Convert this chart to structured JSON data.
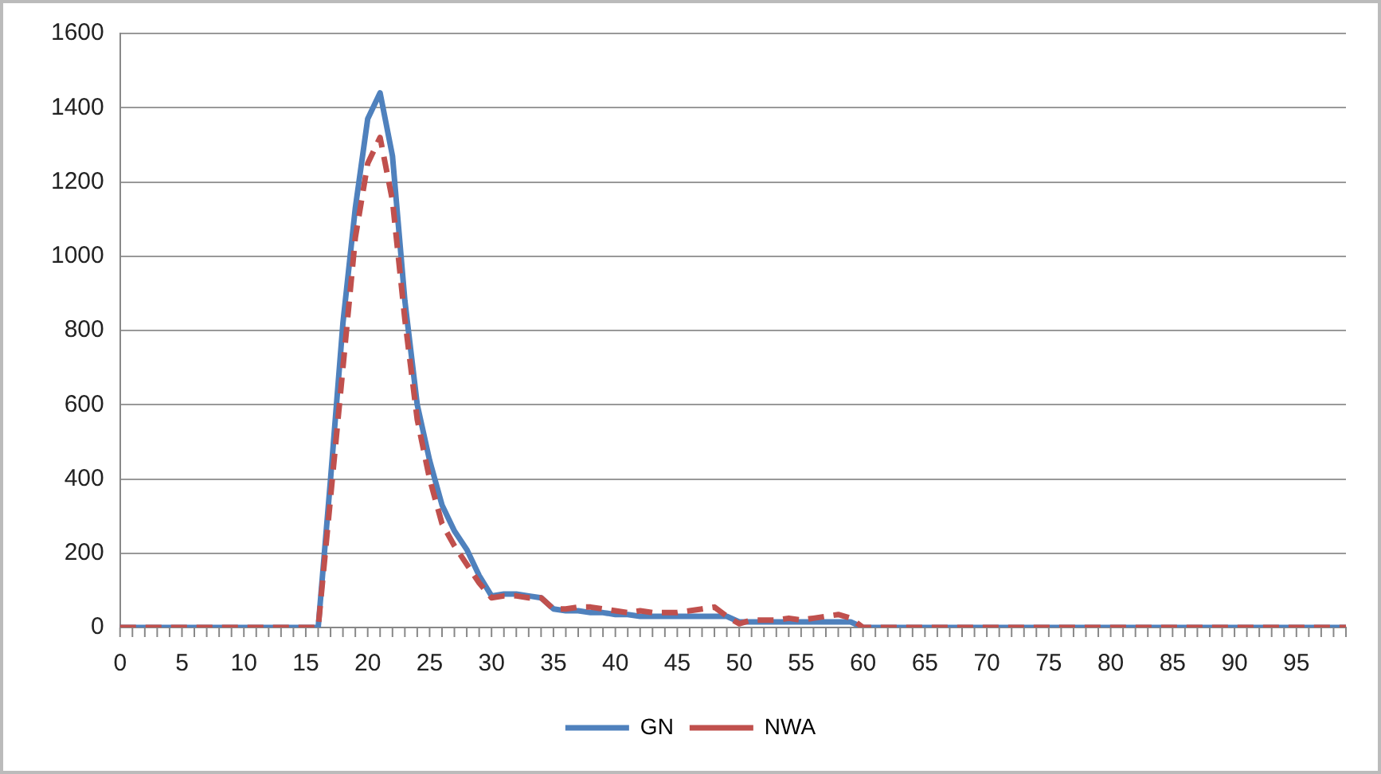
{
  "chart_data": {
    "type": "line",
    "categories": [
      "0",
      null,
      null,
      null,
      null,
      "5",
      null,
      null,
      null,
      null,
      "10",
      null,
      null,
      null,
      null,
      "15",
      null,
      null,
      null,
      null,
      "20",
      null,
      null,
      null,
      null,
      "25",
      null,
      null,
      null,
      null,
      "30",
      null,
      null,
      null,
      null,
      "35",
      null,
      null,
      null,
      null,
      "40",
      null,
      null,
      null,
      null,
      "45",
      null,
      null,
      null,
      null,
      "50",
      null,
      null,
      null,
      null,
      "55",
      null,
      null,
      null,
      null,
      "60",
      null,
      null,
      null,
      null,
      "65",
      null,
      null,
      null,
      null,
      "70",
      null,
      null,
      null,
      null,
      "75",
      null,
      null,
      null,
      null,
      "80",
      null,
      null,
      null,
      null,
      "85",
      null,
      null,
      null,
      null,
      "90",
      null,
      null,
      null,
      null,
      "95",
      null,
      null,
      null,
      null
    ],
    "series": [
      {
        "name": "GN",
        "color": "#4f81bd",
        "line_style": "solid",
        "values": [
          0,
          0,
          0,
          0,
          0,
          0,
          0,
          0,
          0,
          0,
          0,
          0,
          0,
          0,
          0,
          0,
          0,
          400,
          820,
          1130,
          1370,
          1440,
          1270,
          880,
          600,
          450,
          330,
          260,
          210,
          140,
          85,
          90,
          90,
          85,
          80,
          50,
          45,
          45,
          40,
          40,
          35,
          35,
          30,
          30,
          30,
          30,
          30,
          30,
          30,
          30,
          15,
          15,
          15,
          15,
          15,
          15,
          15,
          15,
          15,
          15,
          0,
          0,
          0,
          0,
          0,
          0,
          0,
          0,
          0,
          0,
          0,
          0,
          0,
          0,
          0,
          0,
          0,
          0,
          0,
          0,
          0,
          0,
          0,
          0,
          0,
          0,
          0,
          0,
          0,
          0,
          0,
          0,
          0,
          0,
          0,
          0,
          0,
          0,
          0,
          0
        ]
      },
      {
        "name": "NWA",
        "color": "#c0504d",
        "line_style": "dashed",
        "values": [
          0,
          0,
          0,
          0,
          0,
          0,
          0,
          0,
          0,
          0,
          0,
          0,
          0,
          0,
          0,
          0,
          0,
          350,
          700,
          1050,
          1250,
          1320,
          1150,
          830,
          560,
          400,
          280,
          220,
          170,
          120,
          80,
          85,
          85,
          80,
          80,
          50,
          50,
          55,
          55,
          50,
          45,
          40,
          45,
          40,
          40,
          40,
          45,
          50,
          55,
          30,
          10,
          20,
          20,
          20,
          25,
          20,
          25,
          30,
          35,
          25,
          0,
          0,
          0,
          0,
          0,
          0,
          0,
          0,
          0,
          0,
          0,
          0,
          0,
          0,
          0,
          0,
          0,
          0,
          0,
          0,
          0,
          0,
          0,
          0,
          0,
          0,
          0,
          0,
          0,
          0,
          0,
          0,
          0,
          0,
          0,
          0,
          0,
          0,
          0,
          0
        ]
      }
    ],
    "ylim": [
      0,
      1600
    ],
    "yticks": [
      0,
      200,
      400,
      600,
      800,
      1000,
      1200,
      1400,
      1600
    ],
    "grid": "y",
    "legend": "bottom",
    "marker": "none"
  }
}
